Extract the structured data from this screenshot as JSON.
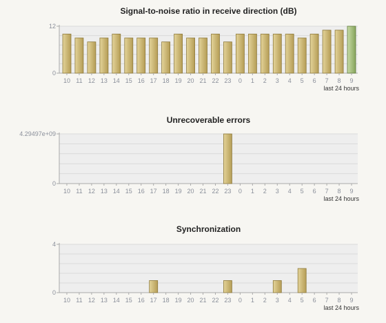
{
  "colors": {
    "background": "#f7f6f2",
    "plot_background": "#eeeeee",
    "gridline": "#d9d9d9",
    "axis": "#a9a9a9",
    "bar_fill_light": "#e4d49a",
    "bar_fill_dark": "#b59d56",
    "bar_stroke": "#8e7a3c",
    "highlight_bar_light": "#c7dba5",
    "highlight_bar_dark": "#86a45c",
    "highlight_bar_stroke": "#5f7a3c"
  },
  "chart_data": [
    {
      "type": "bar",
      "title": "Signal-to-noise ratio in receive direction (dB)",
      "categories": [
        "10",
        "11",
        "12",
        "13",
        "14",
        "15",
        "16",
        "17",
        "18",
        "19",
        "20",
        "21",
        "22",
        "23",
        "0",
        "1",
        "2",
        "3",
        "4",
        "5",
        "6",
        "7",
        "8",
        "9"
      ],
      "values": [
        10,
        9,
        8,
        9,
        10,
        9,
        9,
        9,
        8,
        10,
        9,
        9,
        10,
        8,
        10,
        10,
        10,
        10,
        10,
        9,
        10,
        11,
        11,
        12
      ],
      "highlight_index": 23,
      "ylim": [
        0,
        12
      ],
      "yticks": [
        0,
        12
      ],
      "ytick_labels": [
        "0",
        "12"
      ],
      "unit_label": "last 24 hours",
      "grid": true
    },
    {
      "type": "bar",
      "title": "Unrecoverable errors",
      "categories": [
        "10",
        "11",
        "12",
        "13",
        "14",
        "15",
        "16",
        "17",
        "18",
        "19",
        "20",
        "21",
        "22",
        "23",
        "0",
        "1",
        "2",
        "3",
        "4",
        "5",
        "6",
        "7",
        "8",
        "9"
      ],
      "values": [
        0,
        0,
        0,
        0,
        0,
        0,
        0,
        0,
        0,
        0,
        0,
        0,
        0,
        4294970000,
        0,
        0,
        0,
        0,
        0,
        0,
        0,
        0,
        0,
        0
      ],
      "ylim": [
        0,
        4294970000
      ],
      "yticks": [
        0,
        4294970000
      ],
      "ytick_labels": [
        "0",
        "4.29497e+09"
      ],
      "unit_label": "last 24 hours",
      "grid": true
    },
    {
      "type": "bar",
      "title": "Synchronization",
      "categories": [
        "10",
        "11",
        "12",
        "13",
        "14",
        "15",
        "16",
        "17",
        "18",
        "19",
        "20",
        "21",
        "22",
        "23",
        "0",
        "1",
        "2",
        "3",
        "4",
        "5",
        "6",
        "7",
        "8",
        "9"
      ],
      "values": [
        0,
        0,
        0,
        0,
        0,
        0,
        0,
        1,
        0,
        0,
        0,
        0,
        0,
        1,
        0,
        0,
        0,
        1,
        0,
        2,
        0,
        0,
        0,
        0
      ],
      "ylim": [
        0,
        4
      ],
      "yticks": [
        0,
        4
      ],
      "ytick_labels": [
        "0",
        "4"
      ],
      "unit_label": "last 24 hours",
      "grid": true
    }
  ]
}
